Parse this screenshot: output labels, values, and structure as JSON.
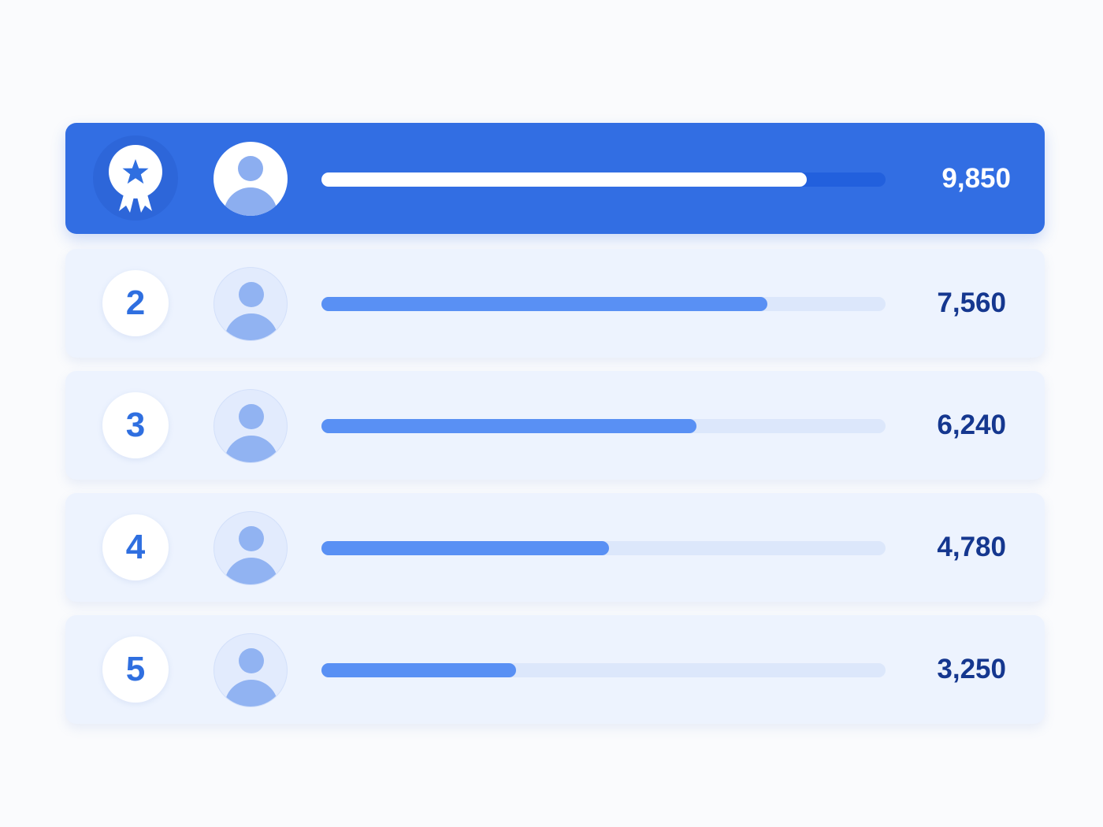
{
  "leaderboard": {
    "colors": {
      "accent": "#326ee3",
      "row_bg": "#edf3fe",
      "bar_fill": "#5990f4",
      "score_text": "#15378f"
    },
    "entries": [
      {
        "rank_icon": "medal-star-icon",
        "avatar_icon": "user-avatar-icon",
        "progress": 0.86,
        "score": "9,850",
        "highlighted": true
      },
      {
        "rank": "2",
        "avatar_icon": "user-avatar-icon",
        "progress": 0.79,
        "score": "7,560"
      },
      {
        "rank": "3",
        "avatar_icon": "user-avatar-icon",
        "progress": 0.665,
        "score": "6,240"
      },
      {
        "rank": "4",
        "avatar_icon": "user-avatar-icon",
        "progress": 0.51,
        "score": "4,780"
      },
      {
        "rank": "5",
        "avatar_icon": "user-avatar-icon",
        "progress": 0.345,
        "score": "3,250"
      }
    ]
  }
}
